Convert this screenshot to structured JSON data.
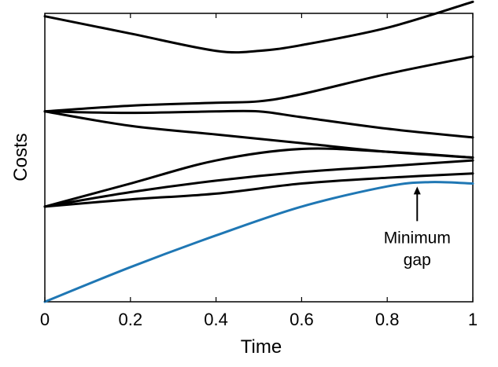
{
  "chart_data": {
    "type": "line",
    "xlabel": "Time",
    "ylabel": "Costs",
    "xlim": [
      0,
      1
    ],
    "ylim": [
      0,
      1
    ],
    "xticks": [
      "0",
      "0.2",
      "0.4",
      "0.6",
      "0.8",
      "1"
    ],
    "xtick_values": [
      0,
      0.2,
      0.4,
      0.6,
      0.8,
      1
    ],
    "grid": false,
    "series": [
      {
        "color": "#000000",
        "x": [
          0,
          0.2,
          0.4,
          0.5,
          0.6,
          0.8,
          1
        ],
        "y": [
          0.99,
          0.93,
          0.87,
          0.87,
          0.89,
          0.95,
          1.04
        ]
      },
      {
        "color": "#000000",
        "x": [
          0,
          0.2,
          0.4,
          0.5,
          0.6,
          0.8,
          1
        ],
        "y": [
          0.66,
          0.68,
          0.69,
          0.695,
          0.72,
          0.79,
          0.85
        ]
      },
      {
        "color": "#000000",
        "x": [
          0,
          0.2,
          0.4,
          0.5,
          0.6,
          0.8,
          1
        ],
        "y": [
          0.66,
          0.655,
          0.66,
          0.66,
          0.64,
          0.6,
          0.57
        ]
      },
      {
        "color": "#000000",
        "x": [
          0,
          0.2,
          0.4,
          0.6,
          0.8,
          1
        ],
        "y": [
          0.66,
          0.61,
          0.58,
          0.55,
          0.52,
          0.5
        ]
      },
      {
        "color": "#000000",
        "x": [
          0,
          0.2,
          0.4,
          0.6,
          0.8,
          1
        ],
        "y": [
          0.33,
          0.41,
          0.49,
          0.53,
          0.52,
          0.5
        ]
      },
      {
        "color": "#000000",
        "x": [
          0,
          0.2,
          0.4,
          0.6,
          0.8,
          1
        ],
        "y": [
          0.33,
          0.38,
          0.42,
          0.45,
          0.47,
          0.49
        ]
      },
      {
        "color": "#000000",
        "x": [
          0,
          0.2,
          0.4,
          0.6,
          0.8,
          1
        ],
        "y": [
          0.33,
          0.355,
          0.375,
          0.41,
          0.43,
          0.445
        ]
      },
      {
        "color": "#1f77b4",
        "x": [
          0,
          0.2,
          0.4,
          0.6,
          0.8,
          0.9,
          1
        ],
        "y": [
          0.0,
          0.12,
          0.23,
          0.33,
          0.4,
          0.415,
          0.41
        ]
      }
    ],
    "annotations": [
      {
        "text_lines": [
          "Minimum",
          "gap"
        ],
        "arrow_x": 0.87,
        "arrow_y": 0.405
      }
    ]
  },
  "colors": {
    "axis": "#000000",
    "blue": "#1f77b4"
  }
}
